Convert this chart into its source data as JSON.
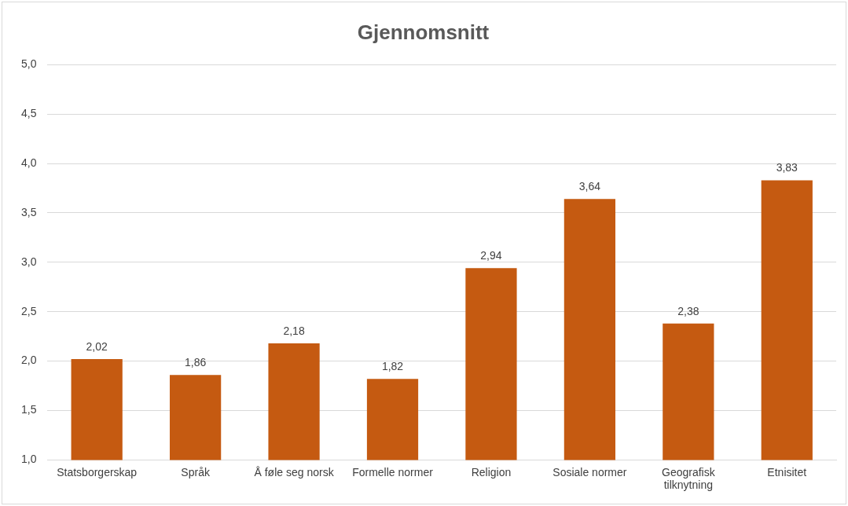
{
  "chart_data": {
    "type": "bar",
    "title": "Gjennomsnitt",
    "categories": [
      "Statsborgerskap",
      "Språk",
      "Å føle seg norsk",
      "Formelle normer",
      "Religion",
      "Sosiale normer",
      [
        "Geografisk",
        "tilknytning"
      ],
      "Etnisitet"
    ],
    "values": [
      2.02,
      1.86,
      2.18,
      1.82,
      2.94,
      3.64,
      2.38,
      3.83
    ],
    "value_labels": [
      "2,02",
      "1,86",
      "2,18",
      "1,82",
      "2,94",
      "3,64",
      "2,38",
      "3,83"
    ],
    "color": "#c55a11",
    "ylim": [
      1,
      5
    ],
    "yticks": [
      {
        "value": 1,
        "label": "1,0"
      },
      {
        "value": 1.5,
        "label": "1,5"
      },
      {
        "value": 2,
        "label": "2,0"
      },
      {
        "value": 2.5,
        "label": "2,5"
      },
      {
        "value": 3,
        "label": "3,0"
      },
      {
        "value": 3.5,
        "label": "3,5"
      },
      {
        "value": 4,
        "label": "4,0"
      },
      {
        "value": 4.5,
        "label": "4,5"
      },
      {
        "value": 5,
        "label": "5,0"
      }
    ],
    "grid": "y",
    "legend": false
  }
}
